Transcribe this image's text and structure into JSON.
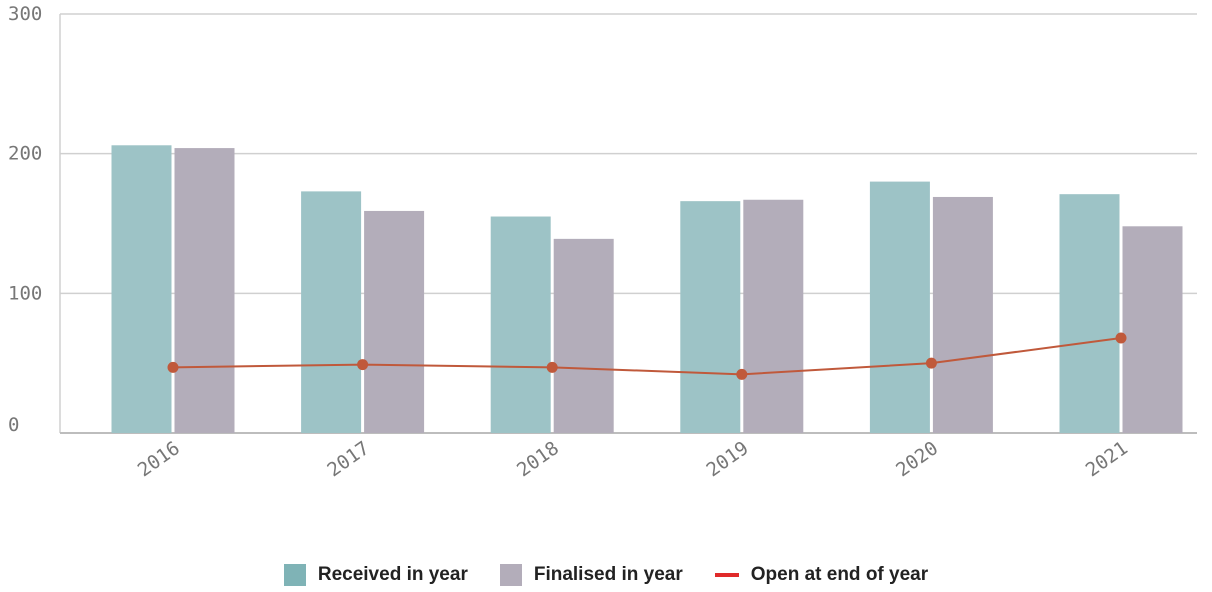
{
  "chart_data": {
    "type": "bar",
    "categories": [
      "2016",
      "2017",
      "2018",
      "2019",
      "2020",
      "2021"
    ],
    "series": [
      {
        "name": "Received in year",
        "kind": "bar",
        "color": "#9dc3c6",
        "values": [
          206,
          173,
          155,
          166,
          180,
          171
        ]
      },
      {
        "name": "Finalised in year",
        "kind": "bar",
        "color": "#b3adba",
        "values": [
          204,
          159,
          139,
          167,
          169,
          148
        ]
      },
      {
        "name": "Open at end of year",
        "kind": "line",
        "color": "#c0593b",
        "values": [
          47,
          49,
          47,
          42,
          50,
          68
        ]
      }
    ],
    "y_ticks": [
      "0",
      "100",
      "200",
      "300"
    ],
    "ylim": [
      0,
      300
    ],
    "grid": true,
    "legend_position": "bottom",
    "title": "",
    "xlabel": "",
    "ylabel": ""
  },
  "legend": {
    "received_label": "Received in year",
    "received_color": "#7fb3b6",
    "finalised_label": "Finalised in year",
    "finalised_color": "#b3adba",
    "open_label": "Open at end of year",
    "open_color": "#e02a2a"
  }
}
